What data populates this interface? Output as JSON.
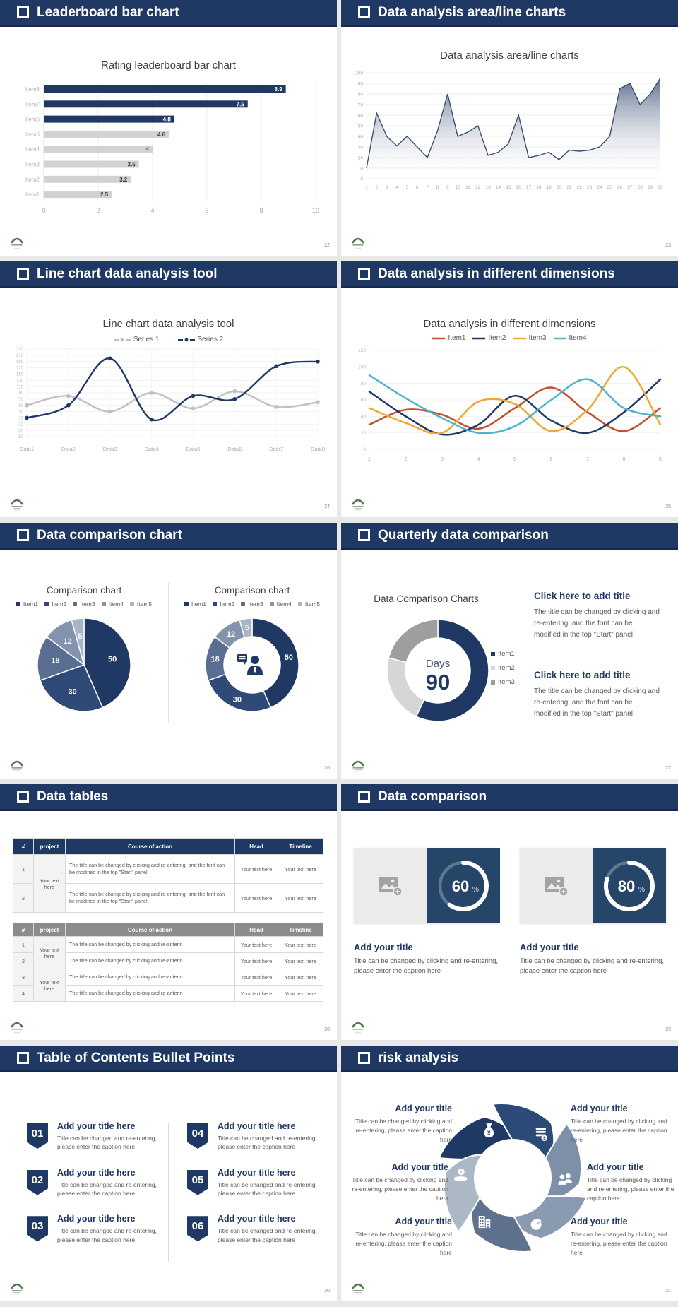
{
  "accent_color": "#1F3864",
  "page_bg": "#E8E8E8",
  "slides": [
    {
      "header": "Leaderboard bar chart",
      "page_number": "22"
    },
    {
      "header": "Data analysis area/line charts",
      "page_number": "23"
    },
    {
      "header": "Line chart data analysis tool",
      "page_number": "24"
    },
    {
      "header": "Data analysis in different dimensions",
      "page_number": "25"
    },
    {
      "header": "Data comparison chart",
      "page_number": "26"
    },
    {
      "header": "Quarterly data comparison",
      "page_number": "27",
      "blocks": [
        {
          "title": "Click here to add title",
          "body": "The title can be changed by clicking and re-entering, and the font can be modified in the top \"Start\" panel"
        },
        {
          "title": "Click here to add title",
          "body": "The title can be changed by clicking and re-entering, and the font can be modified in the top \"Start\" panel"
        }
      ]
    },
    {
      "header": "Data tables",
      "page_number": "28",
      "table1": {
        "headers": [
          "#",
          "project",
          "Course of action",
          "Head",
          "Timeline"
        ],
        "merged_project": "Your text here",
        "rows": [
          {
            "num": "1",
            "action": "The title can be changed by clicking and re-entering, and the font can be modified in the top \"Start\" panel",
            "head": "Your text here",
            "timeline": "Your text here"
          },
          {
            "num": "2",
            "action": "The title can be changed by clicking and re-entering, and the font can be modified in the top \"Start\" panel",
            "head": "Your text here",
            "timeline": "Your text here"
          }
        ]
      },
      "table2": {
        "headers": [
          "#",
          "project",
          "Course of action",
          "Head",
          "Timeline"
        ],
        "merged_projects": [
          "Your text here",
          "Your text here"
        ],
        "rows": [
          {
            "num": "1",
            "action": "The title can be changed by clicking and re-anterin",
            "head": "Your text here",
            "timeline": "Your text here"
          },
          {
            "num": "2",
            "action": "The title can be changed by clicking and re-anterin",
            "head": "Your text here",
            "timeline": "Your text here"
          },
          {
            "num": "3",
            "action": "The title can be changed by clicking and re-anterin",
            "head": "Your text here",
            "timeline": "Your text here"
          },
          {
            "num": "4",
            "action": "The title can be changed by clicking and re-anterin",
            "head": "Your text here",
            "timeline": "Your text here"
          }
        ]
      }
    },
    {
      "header": "Data comparison",
      "page_number": "29",
      "cards": [
        {
          "percent": 60,
          "unit": "%",
          "title": "Add your title",
          "caption": "Title can be changed by clicking and re-entering, please enter the caption here"
        },
        {
          "percent": 80,
          "unit": "%",
          "title": "Add your title",
          "caption": "Title can be changed by clicking and re-entering, please enter the caption here"
        }
      ]
    },
    {
      "header": "Table of Contents Bullet Points",
      "page_number": "30",
      "items": [
        {
          "number": "01",
          "title": "Add your title here",
          "caption": "Title can be changed and re-entering, please enter the caption here"
        },
        {
          "number": "02",
          "title": "Add your title here",
          "caption": "Title can be changed and re-entering, please enter the caption here"
        },
        {
          "number": "03",
          "title": "Add your title here",
          "caption": "Title can be changed and re-entering, please enter the caption here"
        },
        {
          "number": "04",
          "title": "Add your title here",
          "caption": "Title can be changed and re-entering, please enter the caption here"
        },
        {
          "number": "05",
          "title": "Add your title here",
          "caption": "Title can be changed and re-entering, please enter the caption here"
        },
        {
          "number": "06",
          "title": "Add your title here",
          "caption": "Title can be changed and re-entering, please enter the caption here"
        }
      ]
    },
    {
      "header": "risk analysis",
      "page_number": "31",
      "items": [
        {
          "icon": "money-bag",
          "title": "Add your title",
          "caption": "Title can be changed by clicking and re-entering, please enter the caption here"
        },
        {
          "icon": "coins",
          "title": "Add your title",
          "caption": "Title can be changed by clicking and re-entering, please enter the caption here"
        },
        {
          "icon": "people",
          "title": "Add your title",
          "caption": "Title can be changed by clicking and re-entering, please enter the caption here"
        },
        {
          "icon": "pie-chart",
          "title": "Add your title",
          "caption": "Title can be changed by clicking and re-entering, please enter the caption here"
        },
        {
          "icon": "building",
          "title": "Add your title",
          "caption": "Title can be changed by clicking and re-entering, please enter the caption here"
        },
        {
          "icon": "hand-coin",
          "title": "Add your title",
          "caption": "Title can be changed by clicking and re-entering, please enter the caption here"
        }
      ]
    }
  ],
  "chart_data": [
    {
      "id": "leaderboard-bar",
      "type": "bar",
      "orientation": "horizontal",
      "title": "Rating leaderboard bar chart",
      "categories": [
        "Item8",
        "Item7",
        "Item6",
        "Item5",
        "Item4",
        "Item3",
        "Item2",
        "Item1"
      ],
      "values": [
        8.9,
        7.5,
        4.8,
        4.6,
        4,
        3.5,
        3.2,
        2.5
      ],
      "bar_colors": [
        "#1F3864",
        "#1F3864",
        "#1F3864",
        "#D2D2D2",
        "#D2D2D2",
        "#D2D2D2",
        "#D2D2D2",
        "#D2D2D2"
      ],
      "xlim": [
        0,
        10
      ],
      "xticks": [
        0,
        2,
        4,
        6,
        8,
        10
      ],
      "grid": true
    },
    {
      "id": "area-line",
      "type": "area",
      "title": "Data analysis area/line charts",
      "x": [
        1,
        2,
        3,
        4,
        5,
        6,
        7,
        8,
        9,
        10,
        11,
        12,
        13,
        14,
        15,
        16,
        17,
        18,
        19,
        20,
        21,
        22,
        23,
        24,
        25,
        26,
        27,
        28,
        29,
        30
      ],
      "values": [
        10,
        62,
        40,
        31,
        40,
        30,
        20,
        45,
        80,
        40,
        44,
        50,
        22,
        25,
        33,
        60,
        20,
        22,
        25,
        18,
        27,
        26,
        27,
        30,
        40,
        85,
        90,
        70,
        80,
        95
      ],
      "ylim": [
        0,
        100
      ],
      "ytick_step": 10,
      "line_color": "#3A4E70",
      "grid": true
    },
    {
      "id": "two-series-line",
      "type": "line",
      "title": "Line chart data analysis tool",
      "categories": [
        "Data1",
        "Data2",
        "Data3",
        "Data4",
        "Data5",
        "Data6",
        "Data7",
        "Data8"
      ],
      "series": [
        {
          "name": "Series 1",
          "color": "#C0C0C0",
          "values": [
            50,
            80,
            30,
            90,
            40,
            95,
            45,
            60
          ]
        },
        {
          "name": "Series 2",
          "color": "#1F3864",
          "values": [
            10,
            50,
            200,
            5,
            80,
            70,
            175,
            190
          ]
        }
      ],
      "ylim": [
        -50,
        230
      ],
      "ytick_step": 20,
      "markers": true,
      "legend_position": "top",
      "grid": true
    },
    {
      "id": "multi-dimension-line",
      "type": "line",
      "title": "Data analysis in different dimensions",
      "x": [
        1,
        2,
        3,
        4,
        5,
        6,
        7,
        8,
        9
      ],
      "series": [
        {
          "name": "Item1",
          "color": "#C1502E",
          "values": [
            30,
            48,
            42,
            25,
            50,
            75,
            45,
            22,
            50
          ]
        },
        {
          "name": "Item2",
          "color": "#1F3864",
          "values": [
            70,
            40,
            18,
            30,
            65,
            35,
            20,
            45,
            85
          ]
        },
        {
          "name": "Item3",
          "color": "#EFA733",
          "values": [
            50,
            32,
            20,
            58,
            55,
            22,
            48,
            100,
            30
          ]
        },
        {
          "name": "Item4",
          "color": "#4FB3CE",
          "values": [
            90,
            62,
            38,
            20,
            28,
            60,
            85,
            50,
            40
          ]
        }
      ],
      "ylim": [
        0,
        120
      ],
      "ytick_step": 20,
      "markers": false,
      "legend_position": "top",
      "grid": true
    },
    {
      "id": "comparison-pie",
      "type": "pie",
      "title": "Comparison chart",
      "labels": [
        "Item1",
        "Item2",
        "Item3",
        "Item4",
        "Item5"
      ],
      "values": [
        50,
        30,
        18,
        12,
        5
      ],
      "colors": [
        "#1F3864",
        "#2F4A76",
        "#5A6E91",
        "#8293AD",
        "#A9B4C6"
      ]
    },
    {
      "id": "comparison-donut",
      "type": "donut",
      "title": "Comparison chart",
      "labels": [
        "Item1",
        "Item2",
        "Item3",
        "Item4",
        "Item5"
      ],
      "values": [
        50,
        30,
        18,
        12,
        5
      ],
      "colors": [
        "#1F3864",
        "#2F4A76",
        "#5A6E91",
        "#8293AD",
        "#A9B4C6"
      ],
      "center_icon": "businessman"
    },
    {
      "id": "quarterly-donut",
      "type": "donut",
      "title": "Data Comparison Charts",
      "labels": [
        "Item1",
        "Item2",
        "Item3"
      ],
      "values": [
        57,
        22,
        21
      ],
      "colors": [
        "#1F3864",
        "#D6D6D6",
        "#9E9E9E"
      ],
      "center_label": "Days",
      "center_value": "90"
    },
    {
      "id": "progress-rings",
      "type": "progress-ring",
      "values": [
        60,
        80
      ],
      "unit": "%",
      "ring_color": "#FFFFFF"
    }
  ]
}
